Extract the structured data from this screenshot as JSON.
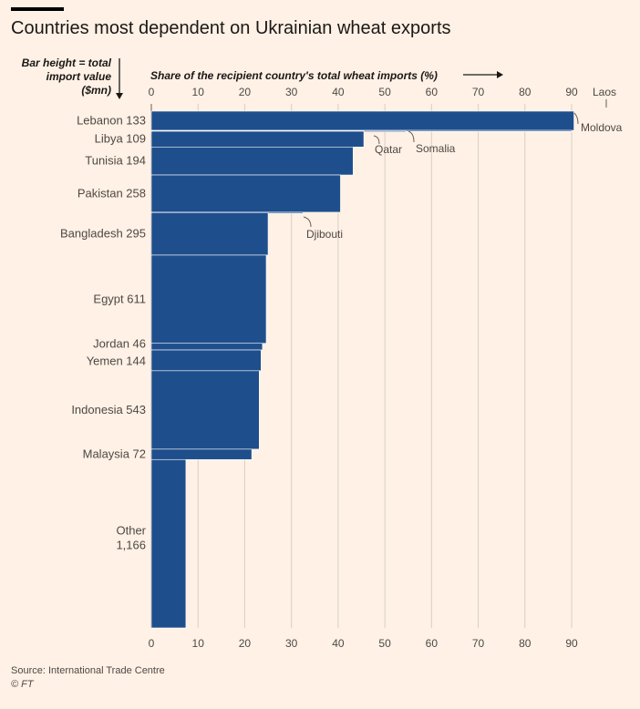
{
  "title": "Countries most dependent on Ukrainian wheat exports",
  "y_axis_note": "Bar height = total import value ($mn)",
  "x_axis_note": "Share of the recipient country's total wheat imports (%)",
  "source": "Source: International Trade Centre",
  "credit": "© FT",
  "colors": {
    "bar": "#1f4e8c",
    "background": "#fff1e5",
    "grid": "#d9cfc5"
  },
  "chart_data": {
    "type": "bar",
    "orientation": "horizontal variable-width (marimekko)",
    "xlim": [
      0,
      90
    ],
    "xticks": [
      "0",
      "10",
      "20",
      "30",
      "40",
      "50",
      "60",
      "70",
      "80",
      "90"
    ],
    "grid": true,
    "bars": [
      {
        "label": "Lebanon 133",
        "country": "Lebanon",
        "import_value": 133,
        "share": 90.5
      },
      {
        "label": "",
        "country": "Moldova",
        "import_value": 2,
        "share": 90.0
      },
      {
        "label": "",
        "country": "Somalia",
        "import_value": 2,
        "share": 54.5
      },
      {
        "label": "",
        "country": "Qatar",
        "import_value": 2,
        "share": 45.5
      },
      {
        "label": "Libya 109",
        "country": "Libya",
        "import_value": 109,
        "share": 45.5
      },
      {
        "label": "Tunisia 194",
        "country": "Tunisia",
        "import_value": 194,
        "share": 43.2
      },
      {
        "label": "Pakistan 258",
        "country": "Pakistan",
        "import_value": 258,
        "share": 40.5
      },
      {
        "label": "",
        "country": "Djibouti",
        "import_value": 2,
        "share": 32.5
      },
      {
        "label": "Bangladesh 295",
        "country": "Bangladesh",
        "import_value": 295,
        "share": 25.0
      },
      {
        "label": "Egypt 611",
        "country": "Egypt",
        "import_value": 611,
        "share": 24.6
      },
      {
        "label": "Jordan 46",
        "country": "Jordan",
        "import_value": 46,
        "share": 23.8
      },
      {
        "label": "Yemen 144",
        "country": "Yemen",
        "import_value": 144,
        "share": 23.5
      },
      {
        "label": "Indonesia 543",
        "country": "Indonesia",
        "import_value": 543,
        "share": 23.1
      },
      {
        "label": "Malaysia 72",
        "country": "Malaysia",
        "import_value": 72,
        "share": 21.5
      },
      {
        "label": "Other\n1,166",
        "country": "Other",
        "import_value": 1166,
        "share": 7.4
      }
    ],
    "annotations": [
      "Laos",
      "Moldova",
      "Qatar",
      "Somalia",
      "Djibouti"
    ]
  }
}
